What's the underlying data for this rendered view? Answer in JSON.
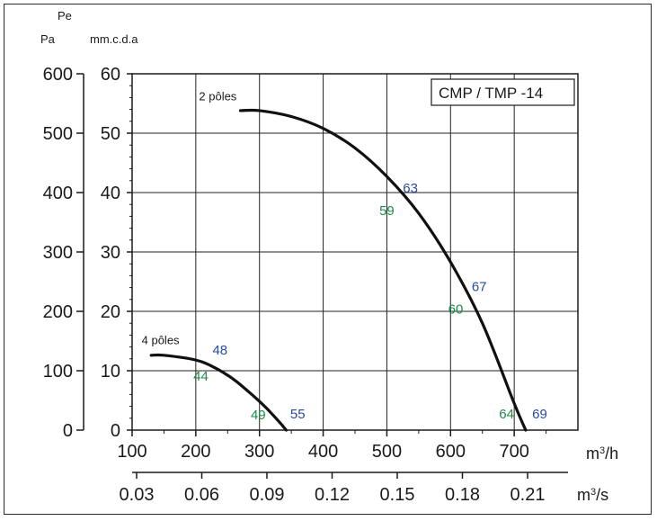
{
  "chart_data": {
    "type": "line",
    "title": "",
    "legend_box": "CMP / TMP  -14",
    "axes": {
      "left_outer": {
        "label_line1": "",
        "label_line2": "Pa",
        "ticks": [
          "600",
          "500",
          "400",
          "300",
          "200",
          "100",
          "0"
        ],
        "range": [
          0,
          600
        ]
      },
      "left_inner": {
        "label_line1": "Pe",
        "label_line2": "mm.c.d.a",
        "ticks": [
          "60",
          "50",
          "40",
          "30",
          "20",
          "10",
          "0"
        ],
        "range": [
          0,
          60
        ]
      },
      "x_main": {
        "unit": "m³/h",
        "unit_base": "m",
        "unit_rest": "/h",
        "ticks": [
          "100",
          "200",
          "300",
          "400",
          "500",
          "600",
          "700"
        ],
        "range": [
          100,
          800
        ]
      },
      "x_secondary": {
        "unit": "m³/s",
        "unit_base": "m",
        "unit_rest": "/s",
        "ticks": [
          "0.03",
          "0.06",
          "0.09",
          "0.12",
          "0.15",
          "0.18",
          "0.21"
        ]
      }
    },
    "grid": true,
    "series": [
      {
        "name": "2 pôles",
        "x": [
          270,
          300,
          350,
          400,
          450,
          500,
          550,
          600,
          650,
          700,
          718
        ],
        "y": [
          538,
          538,
          528,
          508,
          475,
          427,
          365,
          283,
          180,
          45,
          0
        ]
      },
      {
        "name": "4 pôles",
        "x": [
          130,
          150,
          200,
          230,
          260,
          290,
          310,
          330,
          342
        ],
        "y": [
          126,
          126,
          118,
          105,
          85,
          58,
          38,
          15,
          0
        ]
      }
    ],
    "annotations": [
      {
        "text": "63",
        "color": "#2b4aa0",
        "x": 537,
        "y": 400
      },
      {
        "text": "59",
        "color": "#1e8a4a",
        "x": 500,
        "y": 362
      },
      {
        "text": "67",
        "color": "#2b4aa0",
        "x": 645,
        "y": 234
      },
      {
        "text": "60",
        "color": "#1e8a4a",
        "x": 608,
        "y": 196
      },
      {
        "text": "69",
        "color": "#2b4aa0",
        "x": 740,
        "y": 20
      },
      {
        "text": "64",
        "color": "#1e8a4a",
        "x": 688,
        "y": 20
      },
      {
        "text": "48",
        "color": "#2b4aa0",
        "x": 238,
        "y": 127
      },
      {
        "text": "44",
        "color": "#1e8a4a",
        "x": 208,
        "y": 83
      },
      {
        "text": "49",
        "color": "#1e8a4a",
        "x": 298,
        "y": 18
      },
      {
        "text": "55",
        "color": "#2b4aa0",
        "x": 360,
        "y": 20
      }
    ]
  }
}
